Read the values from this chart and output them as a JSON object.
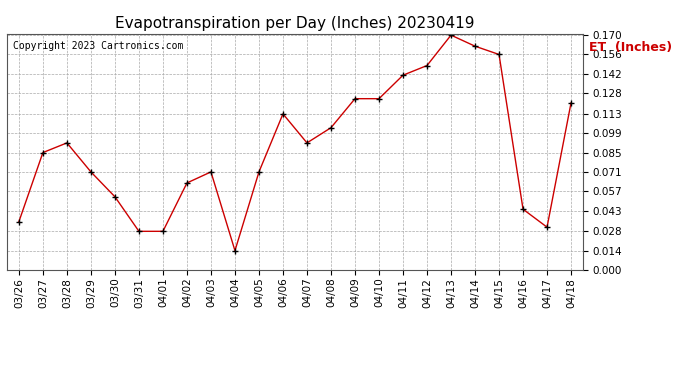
{
  "title": "Evapotranspiration per Day (Inches) 20230419",
  "copyright": "Copyright 2023 Cartronics.com",
  "legend_label": "ET  (Inches)",
  "dates": [
    "03/26",
    "03/27",
    "03/28",
    "03/29",
    "03/30",
    "03/31",
    "04/01",
    "04/02",
    "04/03",
    "04/04",
    "04/05",
    "04/06",
    "04/07",
    "04/08",
    "04/09",
    "04/10",
    "04/11",
    "04/12",
    "04/13",
    "04/14",
    "04/15",
    "04/16",
    "04/17",
    "04/18"
  ],
  "values": [
    0.035,
    0.085,
    0.092,
    0.071,
    0.053,
    0.028,
    0.028,
    0.063,
    0.071,
    0.014,
    0.071,
    0.113,
    0.092,
    0.103,
    0.124,
    0.124,
    0.141,
    0.148,
    0.17,
    0.162,
    0.156,
    0.044,
    0.031,
    0.121
  ],
  "line_color": "#cc0000",
  "marker_color": "#000000",
  "ylim": [
    0.0,
    0.17
  ],
  "yticks": [
    0.0,
    0.014,
    0.028,
    0.043,
    0.057,
    0.071,
    0.085,
    0.099,
    0.113,
    0.128,
    0.142,
    0.156,
    0.17
  ],
  "background_color": "#ffffff",
  "grid_color": "#aaaaaa",
  "title_fontsize": 11,
  "copyright_fontsize": 7,
  "legend_fontsize": 9,
  "tick_fontsize": 7.5
}
